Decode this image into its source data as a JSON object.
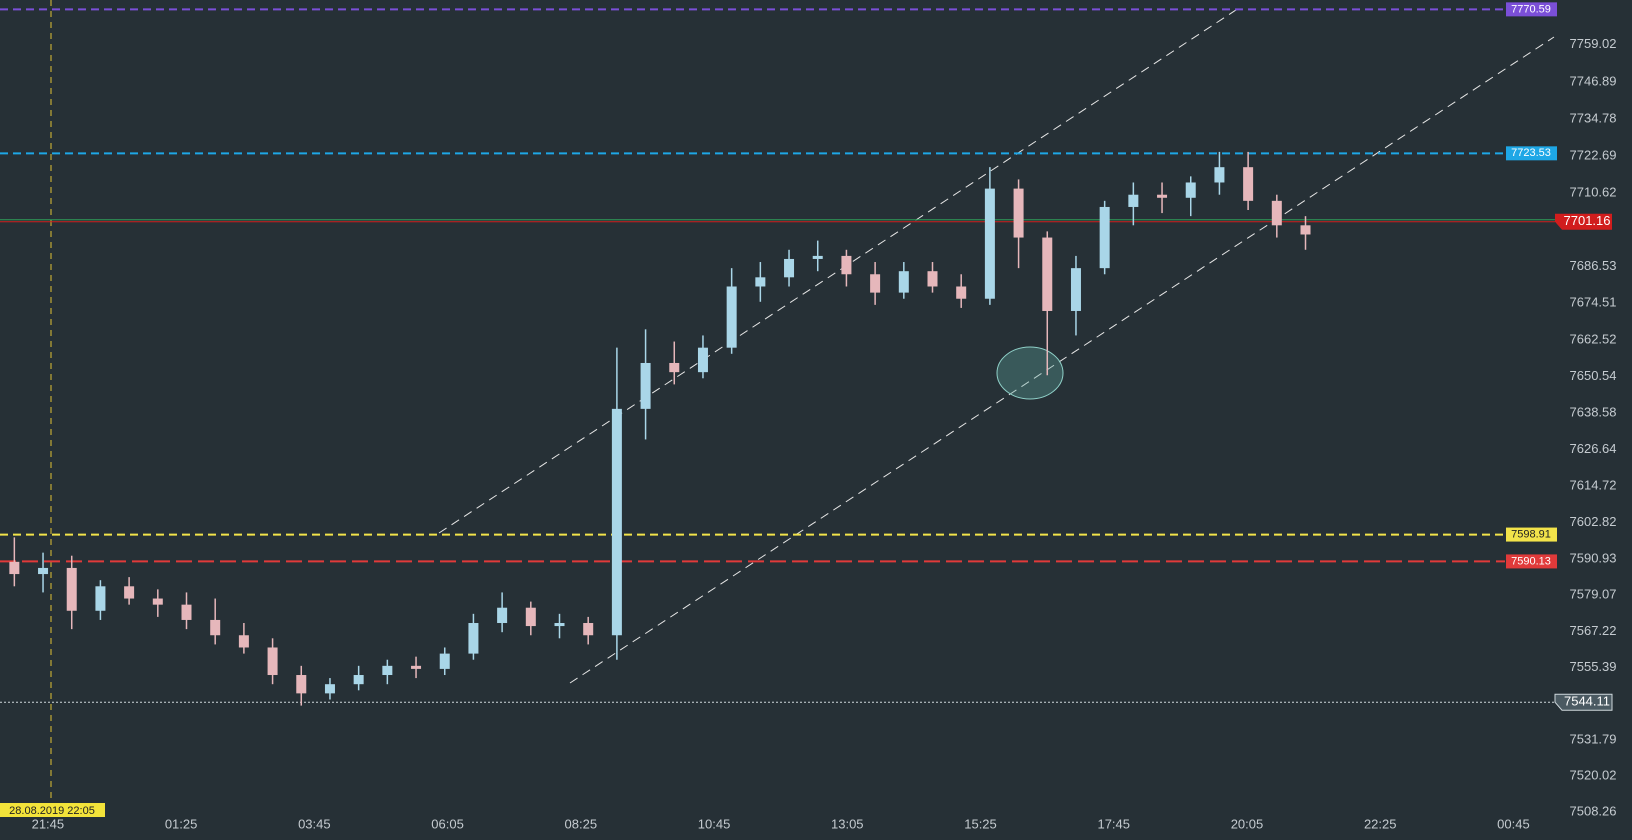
{
  "chart_data": {
    "type": "candlestick",
    "open": [
      7590,
      7586,
      7588,
      7574,
      7582,
      7578,
      7576,
      7571,
      7566,
      7562,
      7553,
      7547,
      7550,
      7553,
      7556,
      7555,
      7560,
      7570,
      7575,
      7569,
      7570,
      7566,
      7640,
      7655,
      7652,
      7660,
      7680,
      7683,
      7689,
      7690,
      7684,
      7678,
      7685,
      7680,
      7676,
      7712,
      7696,
      7672,
      7686,
      7706,
      7710,
      7709,
      7714,
      7719,
      7708,
      7700
    ],
    "high": [
      7598,
      7593,
      7592,
      7584,
      7585,
      7581,
      7580,
      7578,
      7570,
      7565,
      7556,
      7552,
      7556,
      7558,
      7559,
      7562,
      7573,
      7580,
      7577,
      7573,
      7572,
      7660,
      7666,
      7662,
      7664,
      7686,
      7688,
      7692,
      7695,
      7692,
      7688,
      7688,
      7688,
      7684,
      7719,
      7715,
      7698,
      7690,
      7708,
      7714,
      7714,
      7716,
      7724,
      7724,
      7710,
      7703
    ],
    "low": [
      7582,
      7580,
      7568,
      7571,
      7576,
      7572,
      7568,
      7563,
      7560,
      7550,
      7543,
      7545,
      7548,
      7550,
      7552,
      7553,
      7558,
      7567,
      7566,
      7565,
      7563,
      7558,
      7630,
      7648,
      7650,
      7658,
      7675,
      7680,
      7685,
      7680,
      7674,
      7676,
      7678,
      7673,
      7674,
      7686,
      7651,
      7664,
      7684,
      7700,
      7704,
      7703,
      7710,
      7705,
      7696,
      7692
    ],
    "close": [
      7586,
      7588,
      7574,
      7582,
      7578,
      7576,
      7571,
      7566,
      7562,
      7553,
      7547,
      7550,
      7553,
      7556,
      7555,
      7560,
      7570,
      7575,
      7569,
      7570,
      7566,
      7640,
      7655,
      7652,
      7660,
      7680,
      7683,
      7689,
      7690,
      7684,
      7678,
      7685,
      7680,
      7676,
      7712,
      7696,
      7672,
      7686,
      7706,
      7710,
      7709,
      7714,
      7719,
      7708,
      7700,
      7697
    ],
    "up_color": "#a9d6e8",
    "down_color": "#e6b7bb",
    "ylim": [
      7499.07,
      7773.65
    ],
    "yticks": [
      7759.02,
      7746.89,
      7734.78,
      7722.69,
      7710.62,
      7686.53,
      7674.51,
      7662.52,
      7650.54,
      7638.58,
      7626.64,
      7614.72,
      7602.82,
      7590.93,
      7579.07,
      7567.22,
      7555.39,
      7531.79,
      7520.02,
      7508.26
    ],
    "xticks": [
      "21:45",
      "01:25",
      "03:45",
      "06:05",
      "08:25",
      "10:45",
      "13:05",
      "15:25",
      "17:45",
      "20:05",
      "22:25",
      "00:45"
    ],
    "levels": [
      {
        "value": 7770.59,
        "color": "#7b4fd8",
        "style": "dashed"
      },
      {
        "value": 7723.53,
        "color": "#1ea7e6",
        "style": "dashed"
      },
      {
        "value": 7701.16,
        "color": "#d11d1d",
        "style": "current"
      },
      {
        "value": 7598.91,
        "color": "#f2e34a",
        "style": "dashed"
      },
      {
        "value": 7590.13,
        "color": "#e03a3a",
        "style": "dashed"
      },
      {
        "value": 7544.11,
        "color": "#cfd8dc",
        "style": "dotted"
      }
    ],
    "crosshair_label": "28.08.2019 22:05"
  }
}
